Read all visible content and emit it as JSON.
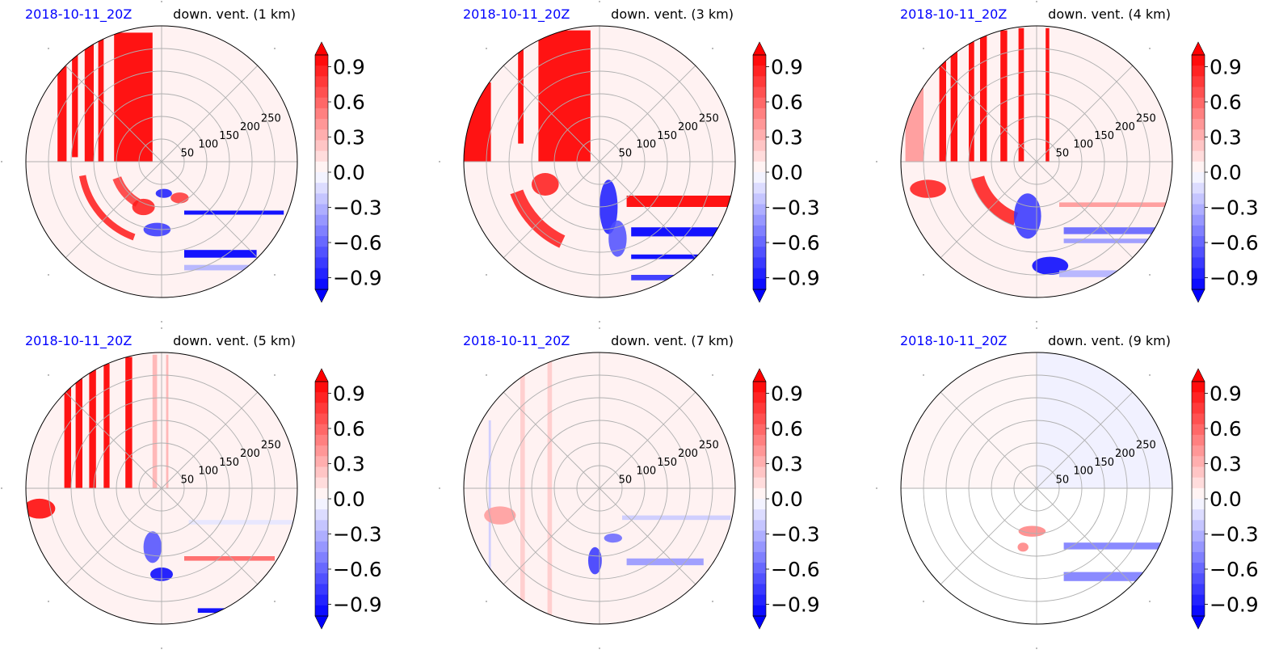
{
  "figure": {
    "colormap": "bwr",
    "colors": {
      "red": "#ff0000",
      "blue": "#0000ff",
      "white": "#ffffff",
      "grid": "#b0b0b0",
      "date_text": "#0000ff"
    }
  },
  "chart_data": [
    {
      "type": "heatmap",
      "projection": "polar",
      "title_left": "2018-10-11_20Z",
      "title_right": "down. vent. (1 km)",
      "radial_ticks": [
        "50",
        "100",
        "150",
        "200",
        "250"
      ],
      "radial_values": [
        50,
        100,
        150,
        200,
        250
      ],
      "rlim": [
        0,
        300
      ],
      "theta_gridlines_deg": [
        0,
        45,
        90,
        135,
        180,
        225,
        270,
        315
      ],
      "colorbar": {
        "ticks": [
          "0.9",
          "0.6",
          "0.3",
          "0.0",
          "−0.3",
          "−0.6",
          "−0.9"
        ],
        "tick_values": [
          0.9,
          0.6,
          0.3,
          0.0,
          -0.3,
          -0.6,
          -0.9
        ],
        "range": [
          -1.0,
          1.0
        ],
        "extend": "both"
      },
      "background_value": 0.05,
      "features": [
        {
          "kind": "vbar",
          "x": [
            -230,
            -210
          ],
          "y": [
            0,
            265
          ],
          "value": 1.0
        },
        {
          "kind": "vbar",
          "x": [
            -198,
            -185
          ],
          "y": [
            10,
            265
          ],
          "value": 1.0
        },
        {
          "kind": "vbar",
          "x": [
            -170,
            -150
          ],
          "y": [
            0,
            265
          ],
          "value": 1.0
        },
        {
          "kind": "vbar",
          "x": [
            -140,
            -128
          ],
          "y": [
            0,
            280
          ],
          "value": 1.0
        },
        {
          "kind": "vbar",
          "x": [
            -105,
            -20
          ],
          "y": [
            0,
            285
          ],
          "value": 1.0
        },
        {
          "kind": "arc",
          "r": [
            170,
            185
          ],
          "theta": [
            190,
            250
          ],
          "value": 0.9
        },
        {
          "kind": "arc",
          "r": [
            95,
            115
          ],
          "theta": [
            200,
            240
          ],
          "value": 0.8
        },
        {
          "kind": "blob",
          "x": -40,
          "y": -100,
          "rx": 25,
          "ry": 18,
          "value": 0.9
        },
        {
          "kind": "blob",
          "x": 5,
          "y": -70,
          "rx": 18,
          "ry": 10,
          "value": -0.9
        },
        {
          "kind": "blob",
          "x": -10,
          "y": -150,
          "rx": 30,
          "ry": 15,
          "value": -0.8
        },
        {
          "kind": "blob",
          "x": 40,
          "y": -80,
          "rx": 20,
          "ry": 12,
          "value": 0.8
        },
        {
          "kind": "hbar",
          "x": [
            50,
            270
          ],
          "y": [
            -117,
            -108
          ],
          "value": -1.0
        },
        {
          "kind": "hbar",
          "x": [
            50,
            210
          ],
          "y": [
            -212,
            -195
          ],
          "value": -1.0
        },
        {
          "kind": "hbar",
          "x": [
            50,
            200
          ],
          "y": [
            -240,
            -228
          ],
          "value": -0.3
        }
      ]
    },
    {
      "type": "heatmap",
      "projection": "polar",
      "title_left": "2018-10-11_20Z",
      "title_right": "down. vent. (3 km)",
      "radial_ticks": [
        "50",
        "100",
        "150",
        "200",
        "250"
      ],
      "radial_values": [
        50,
        100,
        150,
        200,
        250
      ],
      "rlim": [
        0,
        300
      ],
      "theta_gridlines_deg": [
        0,
        45,
        90,
        135,
        180,
        225,
        270,
        315
      ],
      "colorbar": {
        "ticks": [
          "0.9",
          "0.6",
          "0.3",
          "0.0",
          "−0.3",
          "−0.6",
          "−0.9"
        ],
        "tick_values": [
          0.9,
          0.6,
          0.3,
          0.0,
          -0.3,
          -0.6,
          -0.9
        ],
        "range": [
          -1.0,
          1.0
        ],
        "extend": "both"
      },
      "background_value": 0.05,
      "features": [
        {
          "kind": "vbar",
          "x": [
            -300,
            -240
          ],
          "y": [
            0,
            175
          ],
          "value": 1.0
        },
        {
          "kind": "vbar",
          "x": [
            -180,
            -168
          ],
          "y": [
            40,
            250
          ],
          "value": 1.0
        },
        {
          "kind": "vbar",
          "x": [
            -135,
            -20
          ],
          "y": [
            0,
            290
          ],
          "value": 1.0
        },
        {
          "kind": "arc",
          "r": [
            180,
            210
          ],
          "theta": [
            200,
            245
          ],
          "value": 0.9
        },
        {
          "kind": "blob",
          "x": -120,
          "y": -50,
          "rx": 30,
          "ry": 25,
          "value": 0.9
        },
        {
          "kind": "blob",
          "x": 20,
          "y": -100,
          "rx": 20,
          "ry": 60,
          "value": -0.9
        },
        {
          "kind": "blob",
          "x": 40,
          "y": -170,
          "rx": 20,
          "ry": 40,
          "value": -0.7
        },
        {
          "kind": "hbar",
          "x": [
            60,
            300
          ],
          "y": [
            -100,
            -75
          ],
          "value": 1.0
        },
        {
          "kind": "hbar",
          "x": [
            70,
            285
          ],
          "y": [
            -165,
            -145
          ],
          "value": -1.0
        },
        {
          "kind": "hbar",
          "x": [
            70,
            260
          ],
          "y": [
            -215,
            -205
          ],
          "value": -1.0
        },
        {
          "kind": "hbar",
          "x": [
            70,
            240
          ],
          "y": [
            -262,
            -250
          ],
          "value": -0.8
        }
      ]
    },
    {
      "type": "heatmap",
      "projection": "polar",
      "title_left": "2018-10-11_20Z",
      "title_right": "down. vent. (4 km)",
      "radial_ticks": [
        "50",
        "100",
        "150",
        "200",
        "250"
      ],
      "radial_values": [
        50,
        100,
        150,
        200,
        250
      ],
      "rlim": [
        0,
        300
      ],
      "theta_gridlines_deg": [
        0,
        45,
        90,
        135,
        180,
        225,
        270,
        315
      ],
      "colorbar": {
        "ticks": [
          "0.9",
          "0.6",
          "0.3",
          "0.0",
          "−0.3",
          "−0.6",
          "−0.9"
        ],
        "tick_values": [
          0.9,
          0.6,
          0.3,
          0.0,
          -0.3,
          -0.6,
          -0.9
        ],
        "range": [
          -1.0,
          1.0
        ],
        "extend": "both"
      },
      "background_value": 0.05,
      "features": [
        {
          "kind": "vbar",
          "x": [
            -290,
            -250
          ],
          "y": [
            0,
            200
          ],
          "value": 0.4
        },
        {
          "kind": "vbar",
          "x": [
            -215,
            -200
          ],
          "y": [
            0,
            240
          ],
          "value": 1.0
        },
        {
          "kind": "vbar",
          "x": [
            -190,
            -175
          ],
          "y": [
            0,
            255
          ],
          "value": 1.0
        },
        {
          "kind": "vbar",
          "x": [
            -150,
            -138
          ],
          "y": [
            0,
            275
          ],
          "value": 1.0
        },
        {
          "kind": "vbar",
          "x": [
            -125,
            -110
          ],
          "y": [
            0,
            280
          ],
          "value": 1.0
        },
        {
          "kind": "vbar",
          "x": [
            -80,
            -65
          ],
          "y": [
            0,
            290
          ],
          "value": 1.0
        },
        {
          "kind": "vbar",
          "x": [
            -40,
            -28
          ],
          "y": [
            0,
            295
          ],
          "value": 1.0
        },
        {
          "kind": "vbar",
          "x": [
            20,
            28
          ],
          "y": [
            0,
            295
          ],
          "value": 1.0
        },
        {
          "kind": "arc",
          "r": [
            120,
            150
          ],
          "theta": [
            195,
            250
          ],
          "value": 0.9
        },
        {
          "kind": "blob",
          "x": -240,
          "y": -60,
          "rx": 40,
          "ry": 20,
          "value": 0.9
        },
        {
          "kind": "blob",
          "x": -20,
          "y": -120,
          "rx": 30,
          "ry": 50,
          "value": -0.8
        },
        {
          "kind": "blob",
          "x": 30,
          "y": -230,
          "rx": 40,
          "ry": 20,
          "value": -1.0
        },
        {
          "kind": "hbar",
          "x": [
            50,
            300
          ],
          "y": [
            -100,
            -90
          ],
          "value": 0.4
        },
        {
          "kind": "hbar",
          "x": [
            60,
            285
          ],
          "y": [
            -160,
            -145
          ],
          "value": -0.6
        },
        {
          "kind": "hbar",
          "x": [
            60,
            260
          ],
          "y": [
            -180,
            -170
          ],
          "value": -0.4
        },
        {
          "kind": "hbar",
          "x": [
            50,
            230
          ],
          "y": [
            -255,
            -240
          ],
          "value": -0.3
        }
      ]
    },
    {
      "type": "heatmap",
      "projection": "polar",
      "title_left": "2018-10-11_20Z",
      "title_right": "down. vent. (5 km)",
      "radial_ticks": [
        "50",
        "100",
        "150",
        "200",
        "250"
      ],
      "radial_values": [
        50,
        100,
        150,
        200,
        250
      ],
      "rlim": [
        0,
        300
      ],
      "theta_gridlines_deg": [
        0,
        45,
        90,
        135,
        180,
        225,
        270,
        315
      ],
      "colorbar": {
        "ticks": [
          "0.9",
          "0.6",
          "0.3",
          "0.0",
          "−0.3",
          "−0.6",
          "−0.9"
        ],
        "tick_values": [
          0.9,
          0.6,
          0.3,
          0.0,
          -0.3,
          -0.6,
          -0.9
        ],
        "range": [
          -1.0,
          1.0
        ],
        "extend": "both"
      },
      "background_value": 0.05,
      "features": [
        {
          "kind": "vbar",
          "x": [
            -215,
            -200
          ],
          "y": [
            0,
            245
          ],
          "value": 1.0
        },
        {
          "kind": "vbar",
          "x": [
            -190,
            -175
          ],
          "y": [
            0,
            255
          ],
          "value": 1.0
        },
        {
          "kind": "vbar",
          "x": [
            -160,
            -145
          ],
          "y": [
            0,
            265
          ],
          "value": 1.0
        },
        {
          "kind": "vbar",
          "x": [
            -128,
            -115
          ],
          "y": [
            0,
            275
          ],
          "value": 1.0
        },
        {
          "kind": "vbar",
          "x": [
            -80,
            -65
          ],
          "y": [
            0,
            290
          ],
          "value": 1.0
        },
        {
          "kind": "vbar",
          "x": [
            -20,
            -10
          ],
          "y": [
            0,
            295
          ],
          "value": 0.3
        },
        {
          "kind": "vbar",
          "x": [
            10,
            15
          ],
          "y": [
            0,
            295
          ],
          "value": 0.3
        },
        {
          "kind": "blob",
          "x": -270,
          "y": -45,
          "rx": 35,
          "ry": 22,
          "value": 1.0
        },
        {
          "kind": "blob",
          "x": 0,
          "y": -190,
          "rx": 25,
          "ry": 15,
          "value": -1.0
        },
        {
          "kind": "blob",
          "x": -20,
          "y": -130,
          "rx": 20,
          "ry": 35,
          "value": -0.7
        },
        {
          "kind": "hbar",
          "x": [
            50,
            250
          ],
          "y": [
            -160,
            -150
          ],
          "value": 0.6
        },
        {
          "kind": "hbar",
          "x": [
            80,
            260
          ],
          "y": [
            -275,
            -265
          ],
          "value": -1.0
        },
        {
          "kind": "hbar",
          "x": [
            60,
            300
          ],
          "y": [
            -80,
            -70
          ],
          "value": -0.1
        }
      ]
    },
    {
      "type": "heatmap",
      "projection": "polar",
      "title_left": "2018-10-11_20Z",
      "title_right": "down. vent. (7 km)",
      "radial_ticks": [
        "50",
        "100",
        "150",
        "200",
        "250"
      ],
      "radial_values": [
        50,
        100,
        150,
        200,
        250
      ],
      "rlim": [
        0,
        300
      ],
      "theta_gridlines_deg": [
        0,
        45,
        90,
        135,
        180,
        225,
        270,
        315
      ],
      "colorbar": {
        "ticks": [
          "0.9",
          "0.6",
          "0.3",
          "0.0",
          "−0.3",
          "−0.6",
          "−0.9"
        ],
        "tick_values": [
          0.9,
          0.6,
          0.3,
          0.0,
          -0.3,
          -0.6,
          -0.9
        ],
        "range": [
          -1.0,
          1.0
        ],
        "extend": "both"
      },
      "background_value": 0.05,
      "features": [
        {
          "kind": "vbar",
          "x": [
            -175,
            -165
          ],
          "y": [
            -300,
            270
          ],
          "value": 0.2
        },
        {
          "kind": "vbar",
          "x": [
            -115,
            -105
          ],
          "y": [
            -300,
            280
          ],
          "value": 0.2
        },
        {
          "kind": "vbar",
          "x": [
            -245,
            -240
          ],
          "y": [
            -300,
            150
          ],
          "value": -0.2
        },
        {
          "kind": "blob",
          "x": -220,
          "y": -60,
          "rx": 35,
          "ry": 20,
          "value": 0.4
        },
        {
          "kind": "blob",
          "x": -10,
          "y": -160,
          "rx": 15,
          "ry": 30,
          "value": -0.8
        },
        {
          "kind": "blob",
          "x": 30,
          "y": -110,
          "rx": 20,
          "ry": 10,
          "value": -0.6
        },
        {
          "kind": "hbar",
          "x": [
            50,
            290
          ],
          "y": [
            -70,
            -60
          ],
          "value": -0.2
        },
        {
          "kind": "hbar",
          "x": [
            60,
            230
          ],
          "y": [
            -170,
            -155
          ],
          "value": -0.4
        }
      ]
    },
    {
      "type": "heatmap",
      "projection": "polar",
      "title_left": "2018-10-11_20Z",
      "title_right": "down. vent. (9 km)",
      "radial_ticks": [
        "50",
        "100",
        "150",
        "200",
        "250"
      ],
      "radial_values": [
        50,
        100,
        150,
        200,
        250
      ],
      "rlim": [
        0,
        300
      ],
      "theta_gridlines_deg": [
        0,
        45,
        90,
        135,
        180,
        225,
        270,
        315
      ],
      "colorbar": {
        "ticks": [
          "0.9",
          "0.6",
          "0.3",
          "0.0",
          "−0.3",
          "−0.6",
          "−0.9"
        ],
        "tick_values": [
          0.9,
          0.6,
          0.3,
          0.0,
          -0.3,
          -0.6,
          -0.9
        ],
        "range": [
          -1.0,
          1.0
        ],
        "extend": "both"
      },
      "background_value": 0.0,
      "features": [
        {
          "kind": "vbar",
          "x": [
            0,
            300
          ],
          "y": [
            0,
            300
          ],
          "value": -0.06
        },
        {
          "kind": "vbar",
          "x": [
            -300,
            0
          ],
          "y": [
            0,
            300
          ],
          "value": 0.04
        },
        {
          "kind": "blob",
          "x": -10,
          "y": -95,
          "rx": 30,
          "ry": 12,
          "value": 0.5
        },
        {
          "kind": "blob",
          "x": -30,
          "y": -130,
          "rx": 12,
          "ry": 10,
          "value": 0.5
        },
        {
          "kind": "hbar",
          "x": [
            60,
            300
          ],
          "y": [
            -135,
            -120
          ],
          "value": -0.5
        },
        {
          "kind": "hbar",
          "x": [
            60,
            300
          ],
          "y": [
            -205,
            -185
          ],
          "value": -0.5
        }
      ]
    }
  ]
}
